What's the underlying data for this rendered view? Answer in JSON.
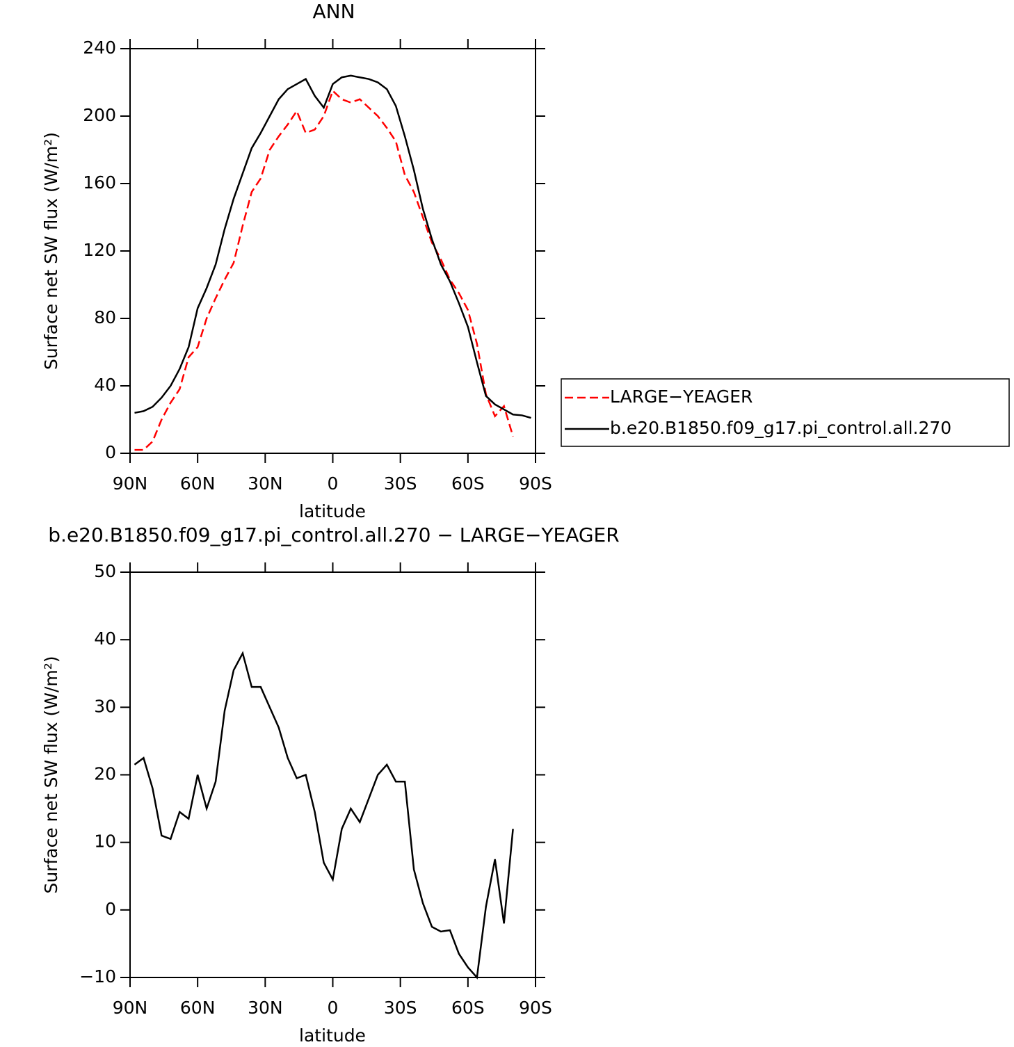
{
  "chart_data": [
    {
      "type": "line",
      "title": "ANN",
      "xlabel": "latitude",
      "ylabel": "Surface net SW flux (W/m²)",
      "x": [
        88,
        84,
        80,
        76,
        72,
        68,
        64,
        60,
        56,
        52,
        48,
        44,
        40,
        36,
        32,
        28,
        24,
        20,
        16,
        12,
        8,
        4,
        0,
        -4,
        -8,
        -12,
        -16,
        -20,
        -24,
        -28,
        -32,
        -36,
        -40,
        -44,
        -48,
        -52,
        -56,
        -60,
        -64,
        -68,
        -72,
        -76,
        -80,
        -84,
        -88
      ],
      "series": [
        {
          "name": "LARGE−YEAGER",
          "color": "#ff0000",
          "dash": true,
          "values": [
            2,
            2,
            7,
            20,
            30,
            38,
            57,
            63,
            80,
            92,
            103,
            113,
            135,
            155,
            163,
            180,
            188,
            195,
            203,
            190,
            192,
            200,
            215,
            210,
            208,
            210,
            205,
            200,
            193,
            185,
            165,
            155,
            140,
            125,
            115,
            103,
            95,
            85,
            65,
            35,
            22,
            28,
            10,
            null,
            null
          ]
        },
        {
          "name": "b.e20.B1850.f09_g17.pi_control.all.270",
          "color": "#000000",
          "dash": false,
          "values": [
            24,
            25,
            27.6,
            33,
            40,
            50,
            63,
            86,
            98,
            112,
            133,
            151,
            166,
            181,
            190,
            200,
            210,
            216,
            219,
            222,
            212,
            205,
            219,
            223,
            224,
            223,
            222,
            220,
            216,
            206,
            188,
            168,
            145,
            127,
            112,
            102,
            89,
            75,
            54,
            34,
            29,
            26,
            23,
            22.5,
            21
          ]
        }
      ],
      "xlim": [
        90,
        -90
      ],
      "xticks": [
        {
          "value": 90,
          "label": "90N"
        },
        {
          "value": 60,
          "label": "60N"
        },
        {
          "value": 30,
          "label": "30N"
        },
        0,
        {
          "value": -30,
          "label": "30S"
        },
        {
          "value": -60,
          "label": "60S"
        },
        {
          "value": -90,
          "label": "90S"
        }
      ],
      "ylim": [
        0,
        240
      ],
      "yticks": [
        0,
        40,
        80,
        120,
        160,
        200,
        240
      ],
      "legend": "right"
    },
    {
      "type": "line",
      "title": "b.e20.B1850.f09_g17.pi_control.all.270 − LARGE−YEAGER",
      "xlabel": "latitude",
      "ylabel": "Surface net SW flux (W/m²)",
      "x": [
        88,
        84,
        80,
        76,
        72,
        68,
        64,
        60,
        56,
        52,
        48,
        44,
        40,
        36,
        32,
        28,
        24,
        20,
        16,
        12,
        8,
        4,
        0,
        -4,
        -8,
        -12,
        -16,
        -20,
        -24,
        -28,
        -32,
        -36,
        -40,
        -44,
        -48,
        -52,
        -56,
        -60,
        -64,
        -68,
        -72,
        -76,
        -80,
        -84,
        -88
      ],
      "values": [
        21.5,
        22.5,
        18,
        11,
        10.5,
        14.5,
        13.5,
        20,
        15,
        19,
        29.5,
        35.5,
        38,
        33,
        33,
        30,
        27,
        22.5,
        19.5,
        20,
        14.5,
        7,
        4.5,
        12,
        15,
        13,
        16.5,
        20,
        21.5,
        19,
        19,
        6,
        1,
        -2.5,
        -3.2,
        -3,
        -6.5,
        -8.5,
        -10,
        0.5,
        7.5,
        -2,
        12,
        null,
        null
      ],
      "color": "#000000",
      "xlim": [
        90,
        -90
      ],
      "xticks": [
        {
          "value": 90,
          "label": "90N"
        },
        {
          "value": 60,
          "label": "60N"
        },
        {
          "value": 30,
          "label": "30N"
        },
        0,
        {
          "value": -30,
          "label": "30S"
        },
        {
          "value": -60,
          "label": "60S"
        },
        {
          "value": -90,
          "label": "90S"
        }
      ],
      "ylim": [
        -10,
        50
      ],
      "yticks": [
        {
          "value": -10,
          "label": "−10"
        },
        0,
        10,
        20,
        30,
        40,
        50
      ]
    }
  ]
}
